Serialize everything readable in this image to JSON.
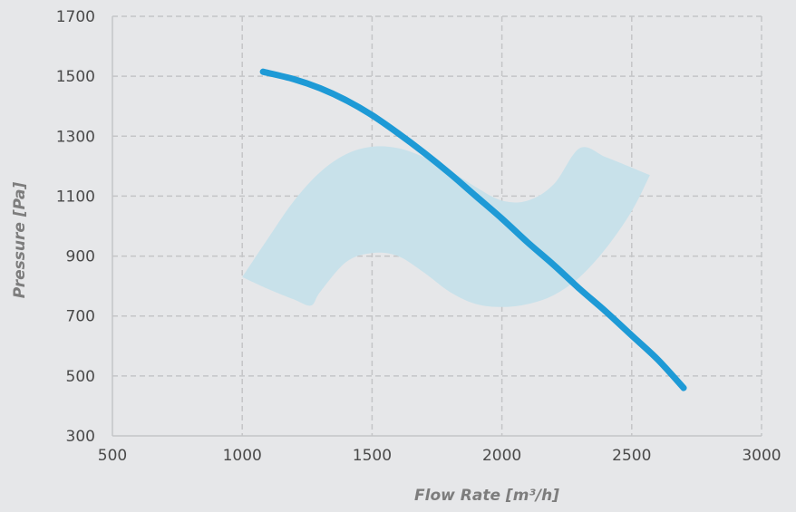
{
  "chart_data": {
    "type": "line",
    "title": "",
    "xlabel": "Flow Rate [m³/h]",
    "ylabel": "Pressure [Pa]",
    "xlim": [
      500,
      3000
    ],
    "ylim": [
      300,
      1700
    ],
    "x_ticks": [
      500,
      1000,
      1500,
      2000,
      2500,
      3000
    ],
    "y_ticks": [
      300,
      500,
      700,
      900,
      1100,
      1300,
      1500,
      1700
    ],
    "grid": true,
    "colors": {
      "background": "#e6e7e9",
      "line": "#1e9ad6",
      "band": "#c8e1ea",
      "grid": "#c4c5c7",
      "tick_text": "#4a4a4a",
      "axis_title": "#7d7d7d"
    },
    "series": [
      {
        "type": "line",
        "x": [
          1080,
          1200,
          1300,
          1400,
          1500,
          1600,
          1700,
          1800,
          1900,
          2000,
          2100,
          2200,
          2300,
          2400,
          2500,
          2600,
          2700
        ],
        "y": [
          1515,
          1490,
          1460,
          1420,
          1370,
          1310,
          1245,
          1175,
          1100,
          1025,
          945,
          870,
          790,
          715,
          635,
          555,
          460
        ]
      },
      {
        "type": "band",
        "upper": {
          "x": [
            1000,
            1100,
            1200,
            1300,
            1400,
            1500,
            1600,
            1700,
            1800,
            1900,
            2000,
            2100,
            2200,
            2300,
            2400,
            2500,
            2570
          ],
          "y": [
            830,
            960,
            1085,
            1180,
            1240,
            1265,
            1260,
            1230,
            1185,
            1130,
            1085,
            1085,
            1140,
            1260,
            1230,
            1195,
            1170
          ]
        },
        "lower": {
          "x": [
            1000,
            1100,
            1200,
            1265,
            1300,
            1400,
            1500,
            1600,
            1700,
            1800,
            1900,
            2000,
            2100,
            2200,
            2300,
            2400,
            2500,
            2570
          ],
          "y": [
            830,
            790,
            755,
            735,
            780,
            880,
            910,
            900,
            845,
            780,
            740,
            730,
            740,
            770,
            830,
            925,
            1050,
            1170
          ]
        }
      }
    ]
  }
}
